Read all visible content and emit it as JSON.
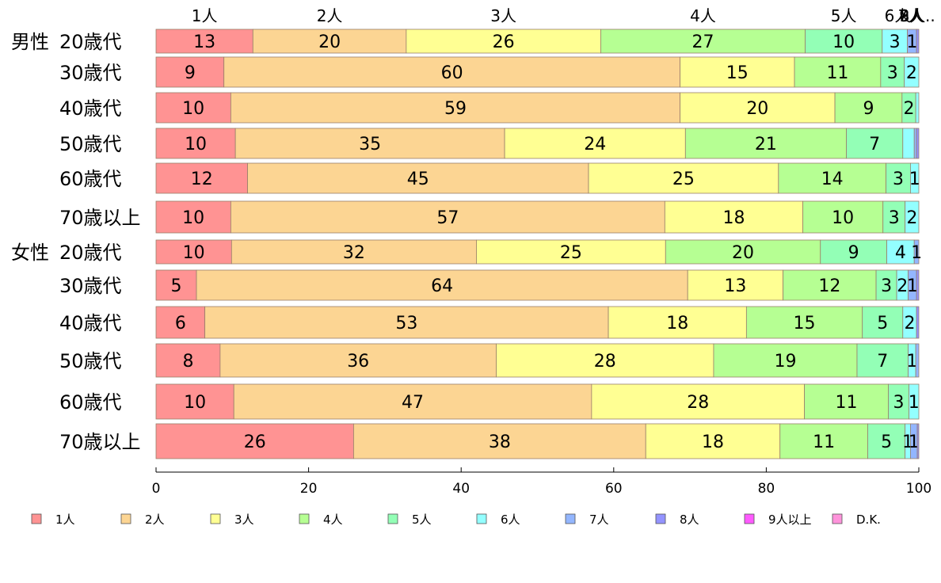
{
  "chart_data": {
    "type": "bar",
    "orientation": "horizontal-stacked-100",
    "xlim": [
      0,
      100
    ],
    "xticks": [
      "0",
      "20",
      "40",
      "60",
      "80",
      "100"
    ],
    "legend_placement": "bottom",
    "series": [
      {
        "name": "1人",
        "color": "#ff9393"
      },
      {
        "name": "2人",
        "color": "#fcd593"
      },
      {
        "name": "3人",
        "color": "#ffff93"
      },
      {
        "name": "4人",
        "color": "#b6ff93"
      },
      {
        "name": "5人",
        "color": "#93ffb6"
      },
      {
        "name": "6人",
        "color": "#93ffff"
      },
      {
        "name": "7人",
        "color": "#93b6ff"
      },
      {
        "name": "8人",
        "color": "#9393ff"
      },
      {
        "name": "9人以上",
        "color": "#ff5aff"
      },
      {
        "name": "D.K.",
        "color": "#ff93db"
      }
    ],
    "top_labels": [
      "1人",
      "2人",
      "3人",
      "4人",
      "5人",
      "6人",
      "7人",
      "8人",
      "9人以上",
      "D.K."
    ],
    "top_labels_shown": [
      "1人",
      "2人",
      "3人",
      "4人",
      "5人",
      "6人",
      "7人",
      "8人",
      "9人.."
    ],
    "rows": [
      {
        "group": "男性",
        "label": "20歳代",
        "values": [
          12.7,
          20.1,
          25.5,
          26.8,
          10.1,
          3.3,
          1.2,
          0.3,
          0,
          0
        ],
        "labels": [
          "13",
          "20",
          "26",
          "27",
          "10",
          "3",
          "1",
          "",
          "",
          ""
        ]
      },
      {
        "group": "",
        "label": "30歳代",
        "values": [
          8.9,
          59.8,
          15.0,
          11.3,
          3.1,
          1.9,
          0,
          0,
          0,
          0
        ],
        "labels": [
          "9",
          "60",
          "15",
          "11",
          "3",
          "2",
          "",
          "",
          "",
          ""
        ]
      },
      {
        "group": "",
        "label": "40歳代",
        "values": [
          9.8,
          58.9,
          20.3,
          8.8,
          1.8,
          0.4,
          0,
          0,
          0,
          0
        ],
        "labels": [
          "10",
          "59",
          "20",
          "9",
          "2",
          "",
          "",
          "",
          "",
          ""
        ]
      },
      {
        "group": "",
        "label": "50歳代",
        "values": [
          10.4,
          35.3,
          23.7,
          21.1,
          7.4,
          1.5,
          0.3,
          0.3,
          0,
          0
        ],
        "labels": [
          "10",
          "35",
          "24",
          "21",
          "7",
          "",
          "",
          "",
          "",
          ""
        ]
      },
      {
        "group": "",
        "label": "60歳代",
        "values": [
          12.0,
          44.7,
          24.9,
          14.1,
          3.2,
          1.1,
          0,
          0,
          0,
          0
        ],
        "labels": [
          "12",
          "45",
          "25",
          "14",
          "3",
          "1",
          "",
          "",
          "",
          ""
        ]
      },
      {
        "group": "",
        "label": "70歳以上",
        "values": [
          9.8,
          56.9,
          18.1,
          10.5,
          2.9,
          1.8,
          0,
          0,
          0,
          0
        ],
        "labels": [
          "10",
          "57",
          "18",
          "10",
          "3",
          "2",
          "",
          "",
          "",
          ""
        ]
      },
      {
        "group": "女性",
        "label": "20歳代",
        "values": [
          9.9,
          32.1,
          24.8,
          20.3,
          8.7,
          3.6,
          0.6,
          0,
          0,
          0
        ],
        "labels": [
          "10",
          "32",
          "25",
          "20",
          "9",
          "4",
          "1",
          "",
          "",
          ""
        ]
      },
      {
        "group": "",
        "label": "30歳代",
        "values": [
          5.3,
          64.4,
          12.5,
          12.2,
          2.7,
          1.5,
          1.1,
          0.3,
          0,
          0
        ],
        "labels": [
          "5",
          "64",
          "13",
          "12",
          "3",
          "2",
          "1",
          "",
          "",
          ""
        ]
      },
      {
        "group": "",
        "label": "40歳代",
        "values": [
          6.4,
          52.9,
          18.1,
          15.2,
          5.3,
          1.8,
          0,
          0.3,
          0,
          0
        ],
        "labels": [
          "6",
          "53",
          "18",
          "15",
          "5",
          "2",
          "",
          "",
          "",
          ""
        ]
      },
      {
        "group": "",
        "label": "50歳代",
        "values": [
          8.4,
          36.2,
          28.5,
          18.8,
          6.7,
          1.0,
          0.4,
          0,
          0,
          0
        ],
        "labels": [
          "8",
          "36",
          "28",
          "19",
          "7",
          "1",
          "",
          "",
          "",
          ""
        ]
      },
      {
        "group": "",
        "label": "60歳代",
        "values": [
          10.2,
          46.9,
          27.9,
          11.0,
          2.7,
          1.3,
          0,
          0,
          0,
          0
        ],
        "labels": [
          "10",
          "47",
          "28",
          "11",
          "3",
          "1",
          "",
          "",
          "",
          ""
        ]
      },
      {
        "group": "",
        "label": "70歳以上",
        "values": [
          25.9,
          38.3,
          17.6,
          11.5,
          4.9,
          0.7,
          0.9,
          0.2,
          0,
          0
        ],
        "labels": [
          "26",
          "38",
          "18",
          "11",
          "5",
          "1",
          "1",
          "",
          "",
          ""
        ]
      }
    ]
  }
}
